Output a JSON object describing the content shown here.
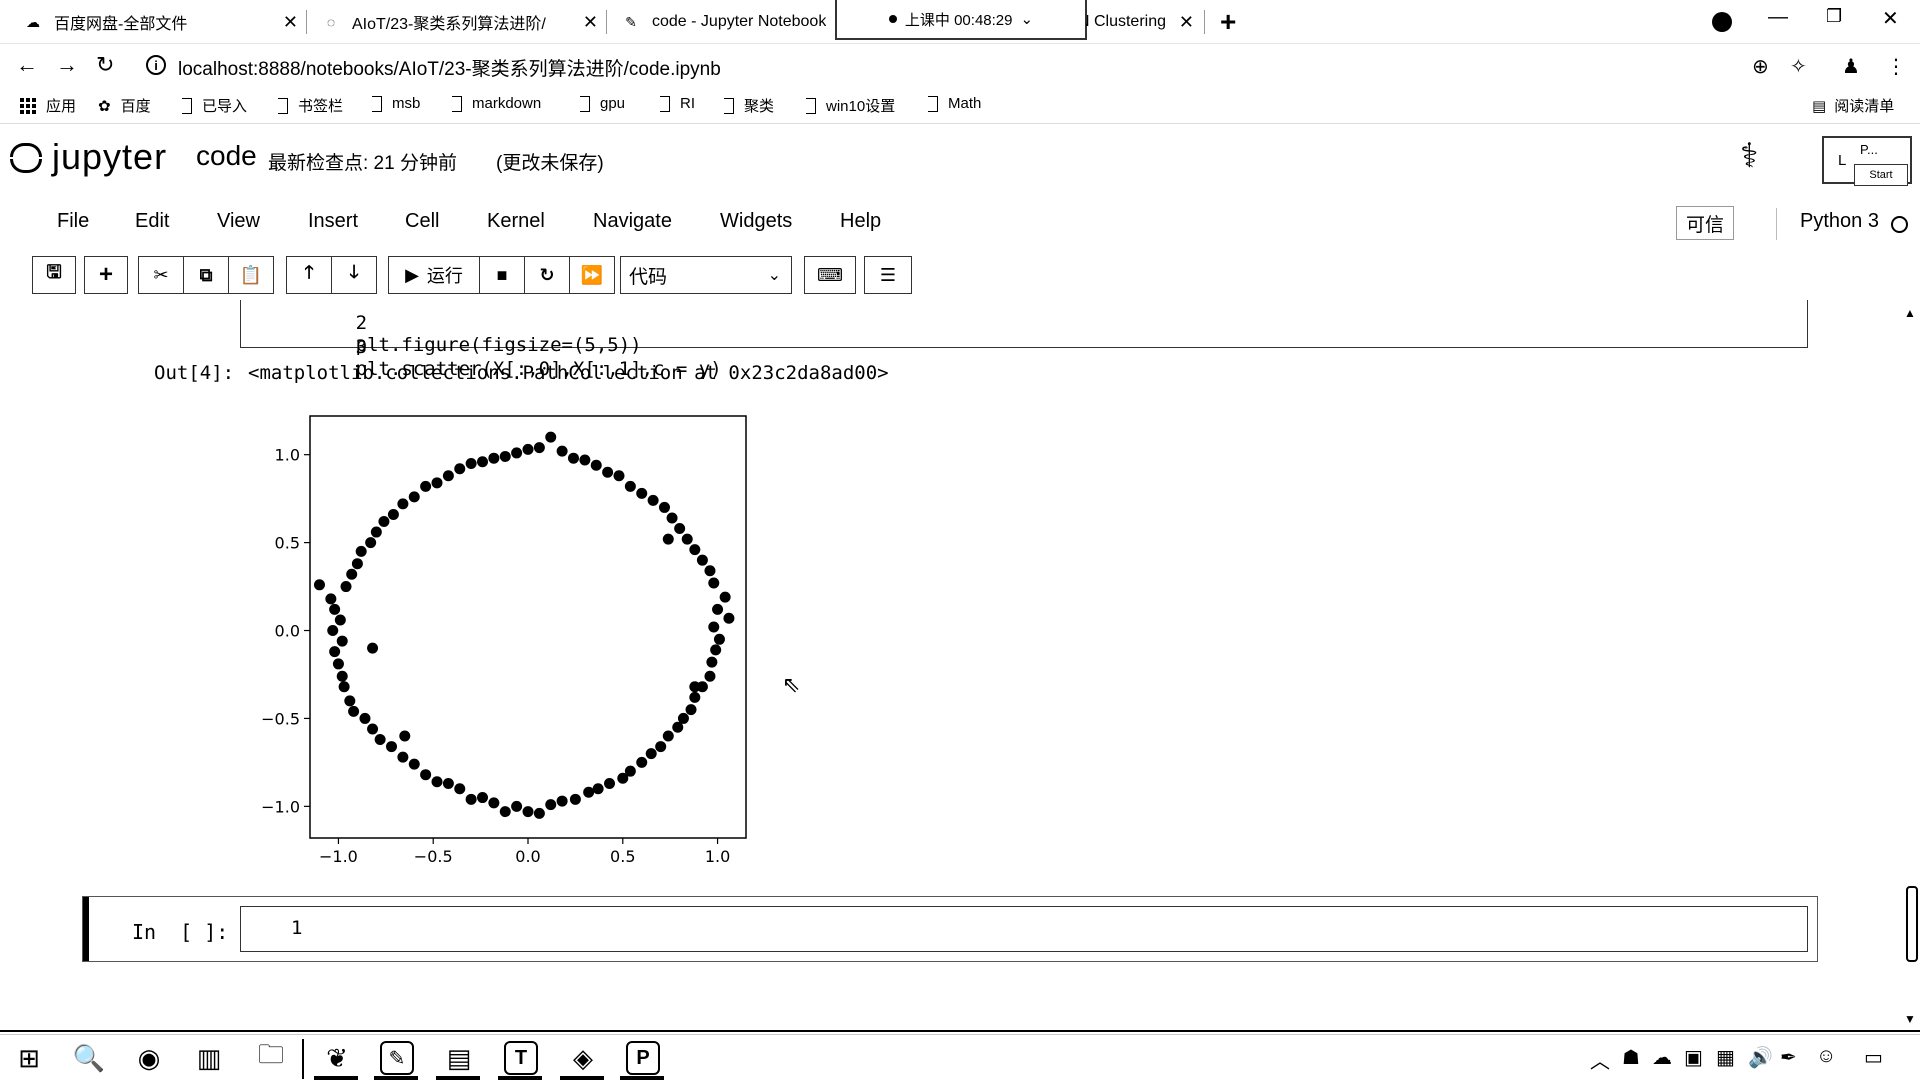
{
  "browser": {
    "tabs": [
      {
        "title": "百度网盘-全部文件",
        "icon": "baidu-pan-icon"
      },
      {
        "title": "AIoT/23-聚类系列算法进阶/",
        "icon": "loading-spinner-icon"
      },
      {
        "title": "code - Jupyter Notebook",
        "icon": "notebook-icon"
      },
      {
        "title": "N Clustering",
        "icon": "page-icon"
      }
    ],
    "recording": "上课中 00:48:29",
    "new_tab": "+",
    "url": "localhost:8888/notebooks/AIoT/23-聚类系列算法进阶/code.ipynb",
    "bookmarks": [
      "应用",
      "百度",
      "已导入",
      "书签栏",
      "msb",
      "markdown",
      "gpu",
      "RI",
      "聚类",
      "win10设置",
      "Math"
    ],
    "reading_list": "阅读清单"
  },
  "jupyter": {
    "logo_text": "jupyter",
    "notebook_name": "code",
    "checkpoint": "最新检查点: 21 分钟前",
    "unsaved": "(更改未保存)",
    "login": {
      "partial": "L",
      "popup": "P...",
      "start": "Start"
    },
    "menu": [
      "File",
      "Edit",
      "View",
      "Insert",
      "Cell",
      "Kernel",
      "Navigate",
      "Widgets",
      "Help"
    ],
    "trusted": "可信",
    "kernel": "Python 3",
    "toolbar": {
      "run_label": "运行",
      "cell_type": "代码"
    }
  },
  "notebook": {
    "prev_cell_lines": [
      {
        "n": "2",
        "code": "plt.figure(figsize=(5,5))"
      },
      {
        "n": "3",
        "code": "plt.scatter(X[:,0],X[:,1],c = y)"
      }
    ],
    "out_prompt": "Out[4]:",
    "out_text": "<matplotlib.collections.PathCollection at 0x23c2da8ad00>",
    "in_prompt": "In  [ ]:",
    "in_line_number": "1"
  },
  "chart_data": {
    "type": "scatter",
    "title": "",
    "xlabel": "",
    "ylabel": "",
    "xlim": [
      -1.15,
      1.15
    ],
    "ylim": [
      -1.18,
      1.22
    ],
    "xticks": [
      -1.0,
      -0.5,
      0.0,
      0.5,
      1.0
    ],
    "yticks": [
      1.0,
      0.5,
      0.0,
      -0.5,
      -1.0
    ],
    "xtick_labels": [
      "−1.0",
      "−0.5",
      "0.0",
      "0.5",
      "1.0"
    ],
    "ytick_labels": [
      "1.0",
      "0.5",
      "0.0",
      "−0.5",
      "−1.0"
    ],
    "grid": false,
    "series": [
      {
        "color": "#000000",
        "points": [
          [
            1.04,
            0.19
          ],
          [
            1.0,
            0.12
          ],
          [
            1.06,
            0.07
          ],
          [
            0.98,
            0.02
          ],
          [
            1.01,
            -0.05
          ],
          [
            0.99,
            -0.11
          ],
          [
            0.97,
            -0.18
          ],
          [
            0.96,
            -0.26
          ],
          [
            0.92,
            -0.32
          ],
          [
            0.88,
            -0.38
          ],
          [
            0.86,
            -0.45
          ],
          [
            0.82,
            -0.5
          ],
          [
            0.79,
            -0.55
          ],
          [
            0.74,
            -0.6
          ],
          [
            0.7,
            -0.66
          ],
          [
            0.65,
            -0.7
          ],
          [
            0.6,
            -0.75
          ],
          [
            0.54,
            -0.8
          ],
          [
            0.5,
            -0.84
          ],
          [
            0.43,
            -0.87
          ],
          [
            0.37,
            -0.9
          ],
          [
            0.32,
            -0.92
          ],
          [
            0.25,
            -0.96
          ],
          [
            0.18,
            -0.97
          ],
          [
            0.12,
            -0.99
          ],
          [
            0.06,
            -1.04
          ],
          [
            0.0,
            -1.03
          ],
          [
            -0.06,
            -1.0
          ],
          [
            -0.12,
            -1.03
          ],
          [
            -0.18,
            -0.98
          ],
          [
            -0.24,
            -0.95
          ],
          [
            -0.3,
            -0.96
          ],
          [
            -0.36,
            -0.9
          ],
          [
            -0.42,
            -0.87
          ],
          [
            -0.48,
            -0.86
          ],
          [
            -0.54,
            -0.82
          ],
          [
            -0.6,
            -0.76
          ],
          [
            -0.66,
            -0.72
          ],
          [
            -0.72,
            -0.66
          ],
          [
            -0.78,
            -0.62
          ],
          [
            -0.82,
            -0.56
          ],
          [
            -0.86,
            -0.5
          ],
          [
            -0.92,
            -0.46
          ],
          [
            -0.94,
            -0.4
          ],
          [
            -0.97,
            -0.32
          ],
          [
            -0.98,
            -0.26
          ],
          [
            -1.0,
            -0.19
          ],
          [
            -1.02,
            -0.12
          ],
          [
            -0.98,
            -0.06
          ],
          [
            -1.03,
            0.0
          ],
          [
            -0.99,
            0.06
          ],
          [
            -1.02,
            0.12
          ],
          [
            -1.04,
            0.18
          ],
          [
            -0.96,
            0.25
          ],
          [
            -0.93,
            0.32
          ],
          [
            -0.9,
            0.38
          ],
          [
            -0.88,
            0.45
          ],
          [
            -0.83,
            0.5
          ],
          [
            -0.8,
            0.56
          ],
          [
            -0.76,
            0.62
          ],
          [
            -0.71,
            0.66
          ],
          [
            -0.66,
            0.72
          ],
          [
            -0.6,
            0.76
          ],
          [
            -0.54,
            0.82
          ],
          [
            -0.48,
            0.84
          ],
          [
            -0.42,
            0.88
          ],
          [
            -0.36,
            0.92
          ],
          [
            -0.3,
            0.95
          ],
          [
            -0.24,
            0.96
          ],
          [
            -0.18,
            0.98
          ],
          [
            -0.12,
            0.99
          ],
          [
            -0.06,
            1.01
          ],
          [
            0.0,
            1.03
          ],
          [
            0.06,
            1.04
          ],
          [
            0.12,
            1.1
          ],
          [
            0.18,
            1.02
          ],
          [
            0.24,
            0.98
          ],
          [
            0.3,
            0.97
          ],
          [
            0.36,
            0.94
          ],
          [
            0.42,
            0.9
          ],
          [
            0.48,
            0.88
          ],
          [
            0.54,
            0.82
          ],
          [
            0.6,
            0.78
          ],
          [
            0.66,
            0.74
          ],
          [
            0.72,
            0.7
          ],
          [
            0.76,
            0.64
          ],
          [
            0.8,
            0.58
          ],
          [
            0.84,
            0.52
          ],
          [
            0.88,
            0.46
          ],
          [
            0.92,
            0.4
          ],
          [
            0.96,
            0.34
          ],
          [
            0.98,
            0.27
          ],
          [
            -1.1,
            0.26
          ],
          [
            -0.82,
            -0.1
          ],
          [
            0.88,
            -0.32
          ],
          [
            -0.65,
            -0.6
          ],
          [
            0.74,
            0.52
          ]
        ]
      }
    ]
  }
}
